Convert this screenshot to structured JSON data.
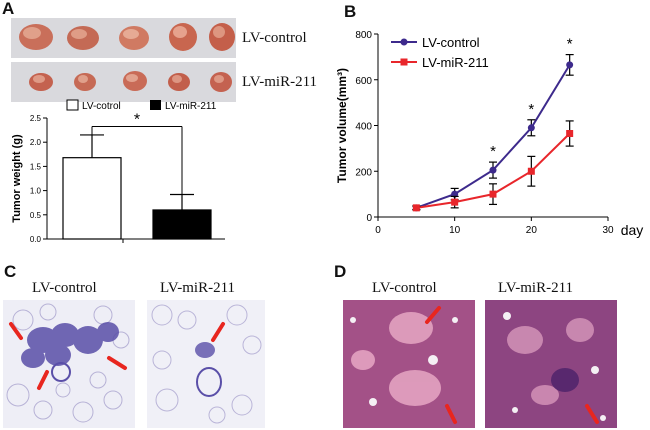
{
  "panels": {
    "a": "A",
    "b": "B",
    "c": "C",
    "d": "D"
  },
  "photo_labels": {
    "control": "LV-control",
    "mir": "LV-miR-211"
  },
  "histology_titles": {
    "c_left": "LV-control",
    "c_right": "LV-miR-211",
    "d_left": "LV-control",
    "d_right": "LV-miR-211"
  },
  "colors": {
    "control": "#3d2a8c",
    "mir": "#e8262b",
    "stain_c": "#5a4fa8",
    "stain_d": "#b14d8a"
  },
  "chart_data": [
    {
      "type": "bar",
      "title": "",
      "categories": [
        "LV-cotrol",
        "LV-miR-211"
      ],
      "values": [
        1.68,
        0.6
      ],
      "errors": [
        0.47,
        0.32
      ],
      "legend": [
        "LV-cotrol",
        "LV-miR-211"
      ],
      "legend_position": "top",
      "ylabel": "Tumor weight (g)",
      "ylim": [
        0,
        2.5
      ],
      "yticks": [
        "0.0",
        "0.5",
        "1.0",
        "1.5",
        "2.0",
        "2.5"
      ],
      "annotation": "*"
    },
    {
      "type": "line",
      "title": "",
      "xlabel": "day",
      "ylabel": "Tumor volume(mm³)",
      "xlim": [
        0,
        30
      ],
      "ylim": [
        0,
        800
      ],
      "xticks": [
        "0",
        "10",
        "20",
        "30"
      ],
      "yticks": [
        "0",
        "200",
        "400",
        "600",
        "800"
      ],
      "legend_position": "top-left",
      "series": [
        {
          "name": "LV-control",
          "x": [
            5,
            10,
            15,
            20,
            25
          ],
          "y": [
            40,
            100,
            205,
            390,
            665
          ],
          "err": [
            8,
            25,
            35,
            35,
            45
          ]
        },
        {
          "name": "LV-miR-211",
          "x": [
            5,
            10,
            15,
            20,
            25
          ],
          "y": [
            40,
            65,
            100,
            200,
            365
          ],
          "err": [
            8,
            25,
            45,
            65,
            55
          ]
        }
      ],
      "annotations": [
        "*",
        "*",
        "*"
      ]
    }
  ]
}
